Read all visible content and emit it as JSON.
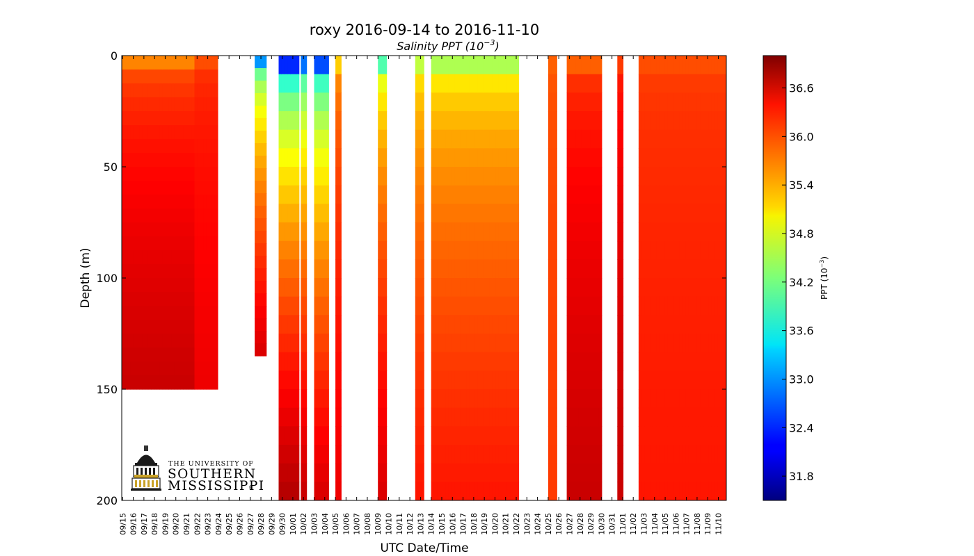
{
  "chart_data": {
    "type": "scatter",
    "title": "roxy 2016-09-14 to 2016-11-10",
    "subtitle_text": "Salinity PPT (10",
    "subtitle_exp": "−3",
    "subtitle_close": ")",
    "xlabel": "UTC Date/Time",
    "ylabel": "Depth (m)",
    "y_inverted": true,
    "ylim": [
      0,
      200
    ],
    "yticks": [
      "0",
      "50",
      "100",
      "150",
      "200"
    ],
    "yticks_values": [
      0,
      50,
      100,
      150,
      200
    ],
    "xlim": [
      "2016-09-14T22:00",
      "2016-11-10T18:00"
    ],
    "xtick_labels": [
      "09/15",
      "09/16",
      "09/17",
      "09/18",
      "09/19",
      "09/20",
      "09/21",
      "09/22",
      "09/23",
      "09/24",
      "09/25",
      "09/26",
      "09/27",
      "09/28",
      "09/29",
      "09/30",
      "10/01",
      "10/02",
      "10/03",
      "10/04",
      "10/05",
      "10/06",
      "10/07",
      "10/08",
      "10/09",
      "10/10",
      "10/11",
      "10/12",
      "10/13",
      "10/14",
      "10/15",
      "10/16",
      "10/17",
      "10/18",
      "10/19",
      "10/20",
      "10/21",
      "10/22",
      "10/23",
      "10/24",
      "10/25",
      "10/26",
      "10/27",
      "10/28",
      "10/29",
      "10/30",
      "10/31",
      "11/01",
      "11/02",
      "11/03",
      "11/04",
      "11/05",
      "11/06",
      "11/07",
      "11/08",
      "11/09",
      "11/10"
    ],
    "colorbar": {
      "label_text": "PPT (10",
      "label_exp": "−3",
      "label_close": ")",
      "range": [
        31.5,
        37.0
      ],
      "ticks": [
        "31.8",
        "32.4",
        "33.0",
        "33.6",
        "34.2",
        "34.8",
        "35.4",
        "36.0",
        "36.6"
      ],
      "tick_values": [
        31.8,
        32.4,
        33.0,
        33.6,
        34.2,
        34.8,
        35.4,
        36.0,
        36.6
      ],
      "colormap": "jet"
    },
    "profiles": [
      {
        "start": "09/14 22:00",
        "end": "09/21 18:00",
        "max_depth": 150,
        "surface_salinity": 35.6,
        "deep_salinity": 36.6
      },
      {
        "start": "09/21 18:00",
        "end": "09/23 22:00",
        "max_depth": 150,
        "surface_salinity": 35.9,
        "deep_salinity": 36.4
      },
      {
        "start": "09/27 10:00",
        "end": "09/28 08:00",
        "max_depth": 135,
        "surface_salinity": 33.0,
        "deep_salinity": 36.5
      },
      {
        "start": "09/29 16:00",
        "end": "10/01 12:00",
        "max_depth": 200,
        "surface_salinity": 32.4,
        "deep_salinity": 36.7
      },
      {
        "start": "10/01 18:00",
        "end": "10/02 06:00",
        "max_depth": 200,
        "surface_salinity": 32.8,
        "deep_salinity": 36.6
      },
      {
        "start": "10/03 00:00",
        "end": "10/04 06:00",
        "max_depth": 200,
        "surface_salinity": 32.6,
        "deep_salinity": 36.5
      },
      {
        "start": "10/05 00:00",
        "end": "10/05 08:00",
        "max_depth": 200,
        "surface_salinity": 35.2,
        "deep_salinity": 36.4
      },
      {
        "start": "10/09 00:00",
        "end": "10/09 18:00",
        "max_depth": 200,
        "surface_salinity": 34.0,
        "deep_salinity": 36.5
      },
      {
        "start": "10/12 12:00",
        "end": "10/13 06:00",
        "max_depth": 200,
        "surface_salinity": 34.6,
        "deep_salinity": 36.2
      },
      {
        "start": "10/14 00:00",
        "end": "10/22 02:00",
        "max_depth": 200,
        "surface_salinity": 34.5,
        "deep_salinity": 36.2
      },
      {
        "start": "10/25 00:00",
        "end": "10/25 18:00",
        "max_depth": 200,
        "surface_salinity": 35.8,
        "deep_salinity": 36.0
      },
      {
        "start": "10/26 18:00",
        "end": "10/30 00:00",
        "max_depth": 200,
        "surface_salinity": 35.8,
        "deep_salinity": 36.6
      },
      {
        "start": "10/31 12:00",
        "end": "10/31 22:00",
        "max_depth": 200,
        "surface_salinity": 36.0,
        "deep_salinity": 36.6
      },
      {
        "start": "11/02 12:00",
        "end": "11/10 16:00",
        "max_depth": 200,
        "surface_salinity": 35.9,
        "deep_salinity": 36.2
      }
    ]
  },
  "logo": {
    "line1": "THE UNIVERSITY OF",
    "line2": "SOUTHERN",
    "line3": "MISSISSIPPI",
    "mark": "®"
  }
}
